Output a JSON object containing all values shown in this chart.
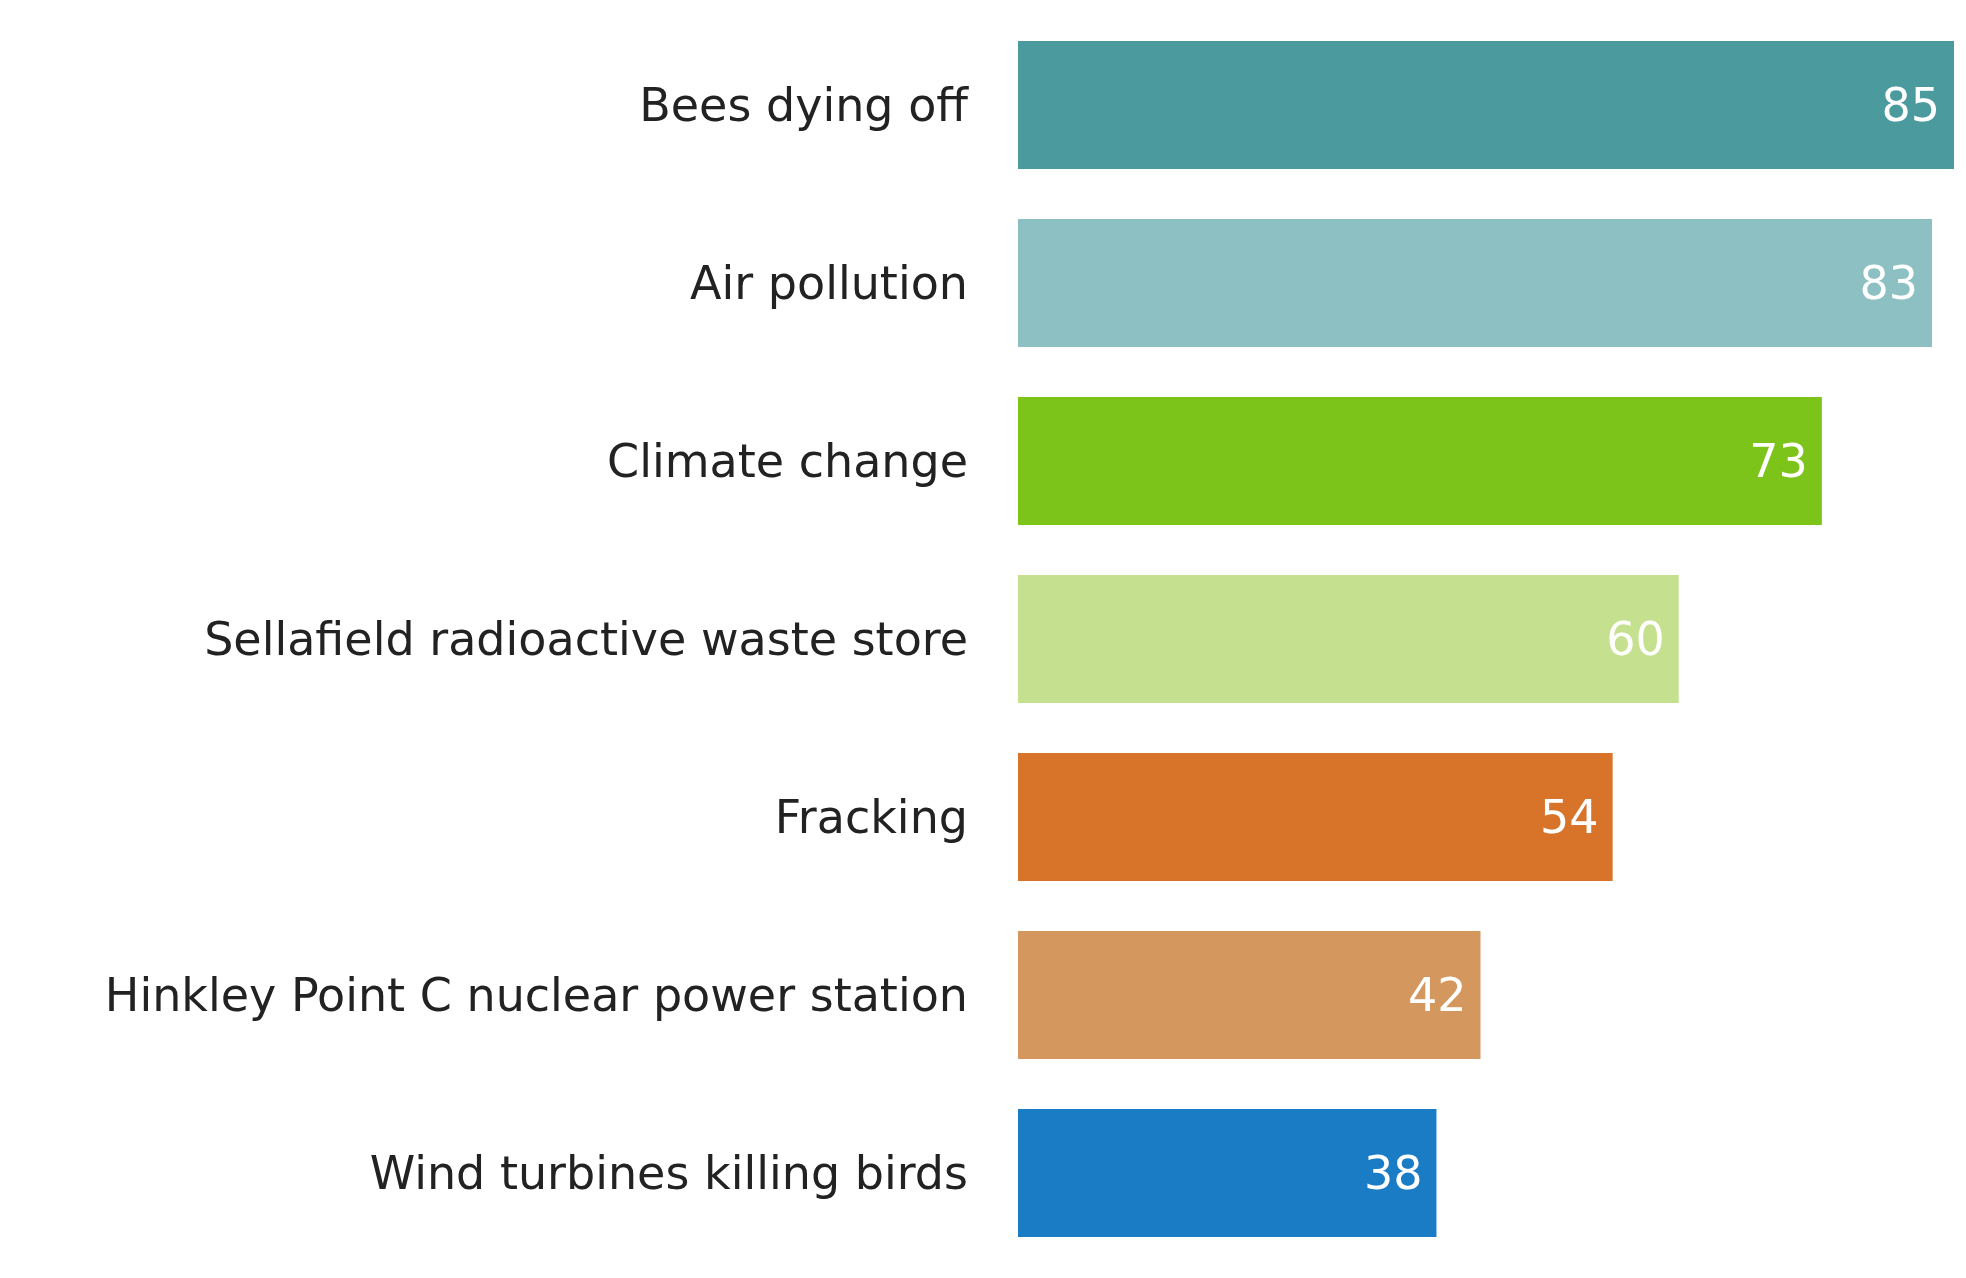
{
  "chart_data": {
    "type": "bar",
    "orientation": "horizontal",
    "categories": [
      "Bees dying off",
      "Air pollution",
      "Climate change",
      "Sellafield radioactive waste store",
      "Fracking",
      "Hinkley Point C nuclear power station",
      "Wind turbines killing birds"
    ],
    "values": [
      85,
      83,
      73,
      60,
      54,
      42,
      38
    ],
    "colors": [
      "#4a9a9e",
      "#8cc0c2",
      "#7dc41a",
      "#c5e08f",
      "#d8732a",
      "#d4975e",
      "#1a7cc4"
    ],
    "data_labels": true
  }
}
